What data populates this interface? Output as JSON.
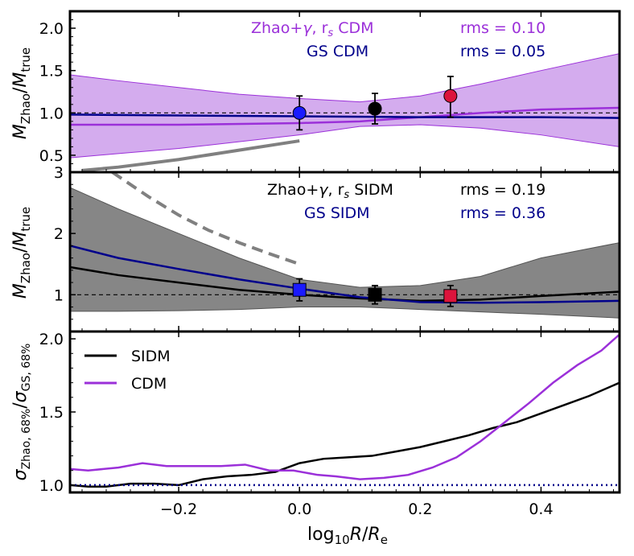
{
  "chart_data": [
    {
      "panel": "top",
      "type": "line",
      "ylabel": "M_Zhao / M_true",
      "xlim": [
        -0.38,
        0.53
      ],
      "ylim": [
        0.3,
        2.2
      ],
      "yticks": [
        "0.5",
        "1.0",
        "1.5",
        "2.0"
      ],
      "yticks_values": [
        0.5,
        1.0,
        1.5,
        2.0
      ],
      "reference_line": 1.0,
      "annotations": [
        {
          "label": "Zhao+γ, r_s  CDM",
          "rms": "rms = 0.10",
          "color": "#9b30d9"
        },
        {
          "label": "GS CDM",
          "rms": "rms = 0.05",
          "color": "#00008b"
        }
      ],
      "band": {
        "name": "Zhao+γ CDM 68% band",
        "color": "#b068e0",
        "x": [
          -0.38,
          -0.3,
          -0.2,
          -0.1,
          0.0,
          0.1,
          0.2,
          0.3,
          0.4,
          0.53
        ],
        "lower": [
          0.47,
          0.52,
          0.58,
          0.66,
          0.74,
          0.84,
          0.86,
          0.82,
          0.74,
          0.6
        ],
        "upper": [
          1.45,
          1.38,
          1.3,
          1.22,
          1.17,
          1.13,
          1.2,
          1.34,
          1.5,
          1.7
        ]
      },
      "series": [
        {
          "name": "Zhao+γ CDM",
          "color": "#9b30d9",
          "x": [
            -0.38,
            -0.2,
            0.0,
            0.1,
            0.2,
            0.3,
            0.4,
            0.53
          ],
          "y": [
            0.86,
            0.86,
            0.88,
            0.9,
            0.95,
            1.0,
            1.04,
            1.06
          ]
        },
        {
          "name": "GS CDM",
          "color": "#00008b",
          "x": [
            -0.38,
            -0.2,
            0.0,
            0.2,
            0.4,
            0.53
          ],
          "y": [
            0.98,
            0.97,
            0.96,
            0.95,
            0.95,
            0.94
          ]
        },
        {
          "name": "grey guide",
          "color": "#808080",
          "x": [
            -0.36,
            -0.3,
            -0.2,
            -0.1,
            0.0
          ],
          "y": [
            0.32,
            0.36,
            0.45,
            0.56,
            0.67
          ]
        }
      ],
      "points": [
        {
          "x": 0.0,
          "y": 1.0,
          "err_low": 0.2,
          "err_high": 0.2,
          "color": "#1a1aff",
          "marker": "circle"
        },
        {
          "x": 0.125,
          "y": 1.05,
          "err_low": 0.18,
          "err_high": 0.18,
          "color": "#000000",
          "marker": "circle"
        },
        {
          "x": 0.25,
          "y": 1.2,
          "err_low": 0.25,
          "err_high": 0.23,
          "color": "#dc143c",
          "marker": "circle"
        }
      ]
    },
    {
      "panel": "middle",
      "type": "line",
      "ylabel": "M_Zhao / M_true",
      "xlim": [
        -0.38,
        0.53
      ],
      "ylim": [
        0.4,
        3.0
      ],
      "yticks": [
        "1",
        "2",
        "3"
      ],
      "yticks_values": [
        1,
        2,
        3
      ],
      "reference_line": 1.0,
      "annotations": [
        {
          "label": "Zhao+γ, r_s  SIDM",
          "rms": "rms = 0.19",
          "color": "#000000"
        },
        {
          "label": "GS SIDM",
          "rms": "rms = 0.36",
          "color": "#00008b"
        }
      ],
      "band": {
        "name": "Zhao+γ SIDM 68% band",
        "color": "#808080",
        "x": [
          -0.38,
          -0.3,
          -0.2,
          -0.1,
          0.0,
          0.1,
          0.2,
          0.3,
          0.4,
          0.53
        ],
        "lower": [
          0.73,
          0.73,
          0.74,
          0.76,
          0.8,
          0.8,
          0.76,
          0.72,
          0.68,
          0.62
        ],
        "upper": [
          2.75,
          2.4,
          2.0,
          1.6,
          1.25,
          1.12,
          1.15,
          1.3,
          1.6,
          1.85
        ]
      },
      "series": [
        {
          "name": "Zhao+γ SIDM",
          "color": "#000000",
          "x": [
            -0.38,
            -0.3,
            -0.2,
            -0.1,
            0.0,
            0.1,
            0.2,
            0.3,
            0.4,
            0.53
          ],
          "y": [
            1.45,
            1.32,
            1.2,
            1.08,
            1.0,
            0.94,
            0.9,
            0.92,
            0.98,
            1.05
          ]
        },
        {
          "name": "GS SIDM",
          "color": "#00008b",
          "x": [
            -0.38,
            -0.3,
            -0.2,
            -0.1,
            0.0,
            0.1,
            0.2,
            0.3,
            0.4,
            0.53
          ],
          "y": [
            1.8,
            1.6,
            1.42,
            1.25,
            1.1,
            0.96,
            0.88,
            0.87,
            0.88,
            0.9
          ]
        },
        {
          "name": "grey dashed guide",
          "color": "#808080",
          "dashed": true,
          "x": [
            -0.31,
            -0.25,
            -0.2,
            -0.15,
            -0.1,
            -0.05,
            0.0
          ],
          "y": [
            3.0,
            2.6,
            2.3,
            2.05,
            1.85,
            1.67,
            1.5
          ]
        }
      ],
      "points": [
        {
          "x": 0.0,
          "y": 1.08,
          "err_low": 0.18,
          "err_high": 0.18,
          "color": "#1a1aff",
          "marker": "square"
        },
        {
          "x": 0.125,
          "y": 1.0,
          "err_low": 0.15,
          "err_high": 0.15,
          "color": "#000000",
          "marker": "square"
        },
        {
          "x": 0.25,
          "y": 0.98,
          "err_low": 0.17,
          "err_high": 0.17,
          "color": "#dc143c",
          "marker": "square"
        }
      ]
    },
    {
      "panel": "bottom",
      "type": "line",
      "ylabel": "σ_Zhao,68% / σ_GS,68%",
      "xlabel": "log10 R / R_e",
      "xlim": [
        -0.38,
        0.53
      ],
      "ylim": [
        0.95,
        2.05
      ],
      "xticks": [
        "−0.2",
        "0.0",
        "0.2",
        "0.4"
      ],
      "xticks_values": [
        -0.2,
        0.0,
        0.2,
        0.4
      ],
      "yticks": [
        "1.0",
        "1.5",
        "2.0"
      ],
      "yticks_values": [
        1.0,
        1.5,
        2.0
      ],
      "reference_line": 1.0,
      "legend": {
        "location": "top-left",
        "entries": [
          {
            "label": "SIDM",
            "color": "#000000"
          },
          {
            "label": "CDM",
            "color": "#9b30d9"
          }
        ]
      },
      "series": [
        {
          "name": "SIDM",
          "color": "#000000",
          "x": [
            -0.38,
            -0.35,
            -0.32,
            -0.28,
            -0.24,
            -0.2,
            -0.16,
            -0.12,
            -0.08,
            -0.04,
            0.0,
            0.04,
            0.08,
            0.12,
            0.16,
            0.2,
            0.24,
            0.28,
            0.32,
            0.36,
            0.4,
            0.44,
            0.48,
            0.53
          ],
          "y": [
            1.0,
            0.99,
            0.99,
            1.01,
            1.01,
            1.0,
            1.04,
            1.06,
            1.07,
            1.09,
            1.15,
            1.18,
            1.19,
            1.2,
            1.23,
            1.26,
            1.3,
            1.34,
            1.39,
            1.43,
            1.49,
            1.55,
            1.61,
            1.7
          ]
        },
        {
          "name": "CDM",
          "color": "#9b30d9",
          "x": [
            -0.38,
            -0.35,
            -0.3,
            -0.26,
            -0.22,
            -0.18,
            -0.13,
            -0.09,
            -0.05,
            -0.01,
            0.03,
            0.06,
            0.1,
            0.14,
            0.18,
            0.22,
            0.26,
            0.3,
            0.34,
            0.38,
            0.42,
            0.46,
            0.5,
            0.53
          ],
          "y": [
            1.11,
            1.1,
            1.12,
            1.15,
            1.13,
            1.13,
            1.13,
            1.14,
            1.1,
            1.1,
            1.07,
            1.06,
            1.04,
            1.05,
            1.07,
            1.12,
            1.19,
            1.3,
            1.43,
            1.56,
            1.7,
            1.82,
            1.92,
            2.03
          ]
        },
        {
          "name": "unity",
          "color": "#00008b",
          "dotted": true,
          "x": [
            -0.38,
            0.53
          ],
          "y": [
            1.0,
            1.0
          ]
        }
      ]
    }
  ]
}
